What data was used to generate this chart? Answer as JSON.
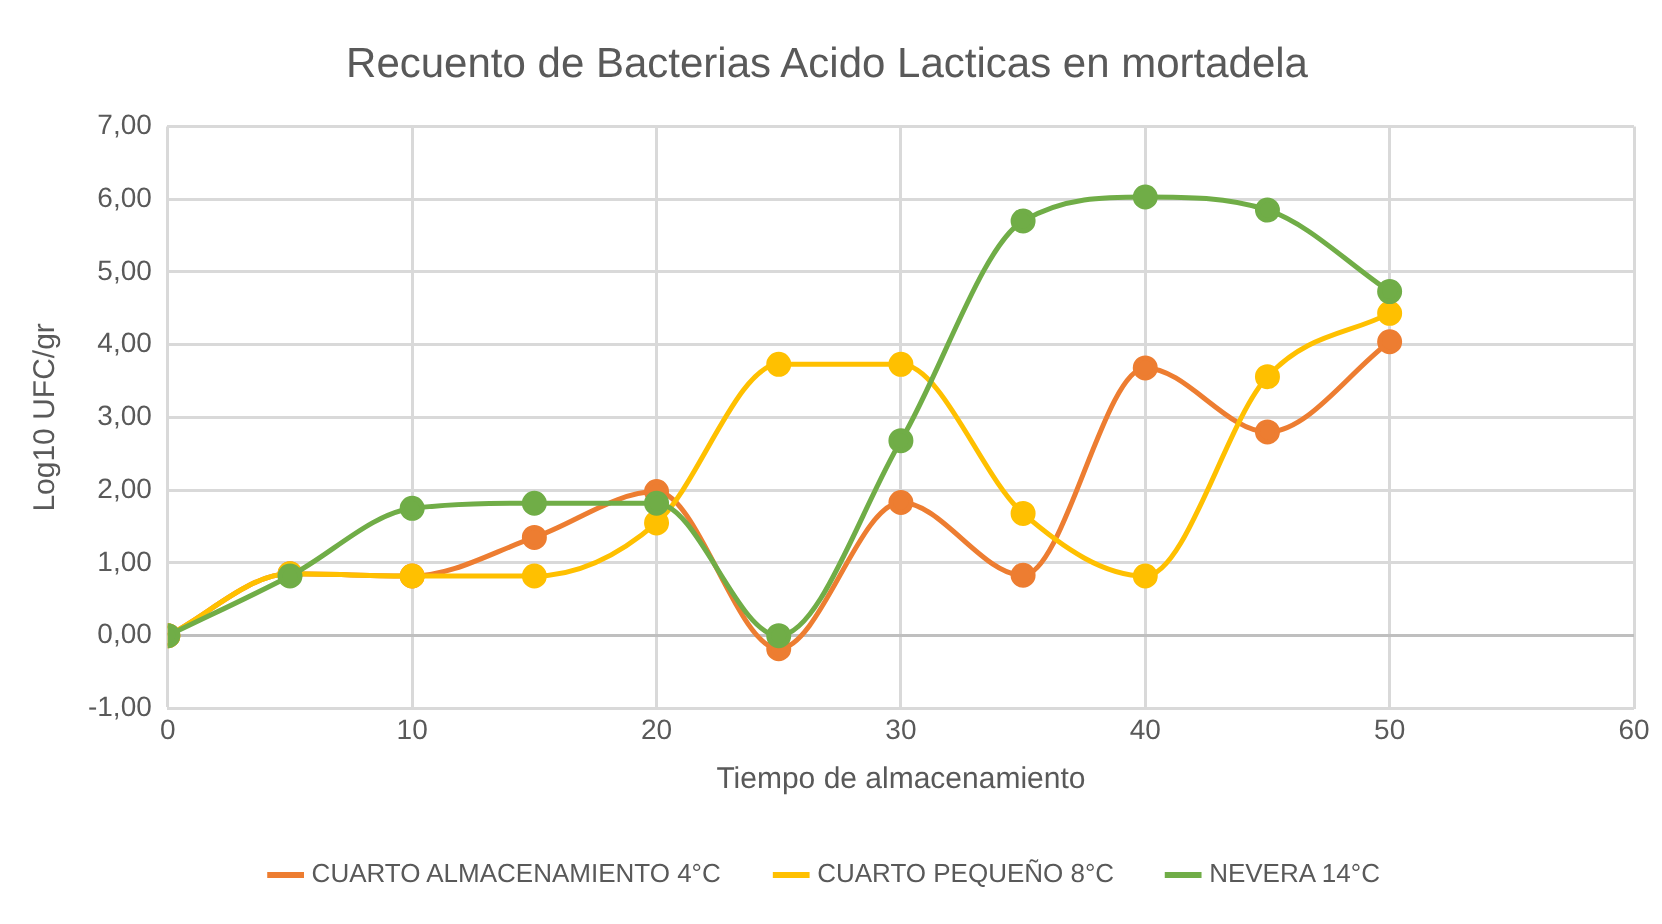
{
  "chart_data": {
    "type": "line",
    "title": "Recuento de Bacterias Acido Lacticas en mortadela",
    "xlabel": "Tiempo de almacenamiento",
    "ylabel": "Log10 UFC/gr",
    "x": [
      0,
      5,
      10,
      15,
      20,
      25,
      30,
      35,
      40,
      45,
      50
    ],
    "series": [
      {
        "name": "CUARTO ALMACENAMIENTO 4°C",
        "color": "#ed7d31",
        "values": [
          0,
          0.85,
          0.82,
          1.35,
          1.98,
          -0.18,
          1.83,
          0.83,
          3.68,
          2.8,
          4.04
        ]
      },
      {
        "name": "CUARTO PEQUEÑO 8°C",
        "color": "#ffc000",
        "values": [
          0,
          0.85,
          0.82,
          0.82,
          1.55,
          3.73,
          3.73,
          1.68,
          0.82,
          3.56,
          4.43
        ]
      },
      {
        "name": "NEVERA 14°C",
        "color": "#70ad47",
        "values": [
          0,
          0.82,
          1.75,
          1.82,
          1.82,
          0,
          2.68,
          5.7,
          6.03,
          5.85,
          4.73
        ]
      }
    ],
    "xlim": [
      0,
      60
    ],
    "xticks": [
      0,
      10,
      20,
      30,
      40,
      50,
      60
    ],
    "ylim": [
      -1,
      7
    ],
    "yticks": [
      {
        "value": -1,
        "label": "-1,00"
      },
      {
        "value": 0,
        "label": "0,00"
      },
      {
        "value": 1,
        "label": "1,00"
      },
      {
        "value": 2,
        "label": "2,00"
      },
      {
        "value": 3,
        "label": "3,00"
      },
      {
        "value": 4,
        "label": "4,00"
      },
      {
        "value": 5,
        "label": "5,00"
      },
      {
        "value": 6,
        "label": "6,00"
      },
      {
        "value": 7,
        "label": "7,00"
      }
    ],
    "grid": true,
    "legend": "bottom",
    "marker": "circle",
    "line_style": "solid"
  }
}
